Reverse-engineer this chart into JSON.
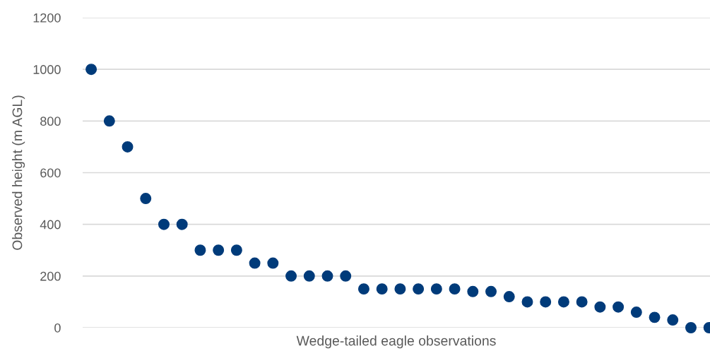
{
  "chart_data": {
    "type": "scatter",
    "xlabel": "Wedge-tailed eagle observations",
    "ylabel": "Observed height (m AGL)",
    "categories": [
      null,
      null,
      null,
      null,
      null,
      null,
      null,
      null,
      null,
      null,
      null,
      null,
      null,
      null,
      null,
      null,
      null,
      null,
      null,
      null,
      null,
      null,
      null,
      null,
      null,
      null,
      null,
      null,
      null,
      null,
      null,
      null,
      null,
      null,
      null
    ],
    "series": [
      {
        "color": "#003b7a",
        "values": [
          1000,
          800,
          700,
          500,
          400,
          400,
          300,
          300,
          300,
          250,
          250,
          200,
          200,
          200,
          200,
          150,
          150,
          150,
          150,
          150,
          150,
          140,
          140,
          120,
          100,
          100,
          100,
          100,
          80,
          80,
          60,
          40,
          30,
          0,
          0
        ]
      }
    ],
    "ylim": [
      0,
      1200
    ],
    "yticks": [
      0,
      200,
      400,
      600,
      800,
      1000,
      1200
    ],
    "grid": "y",
    "marker": "circle",
    "tick_labels": "y"
  }
}
